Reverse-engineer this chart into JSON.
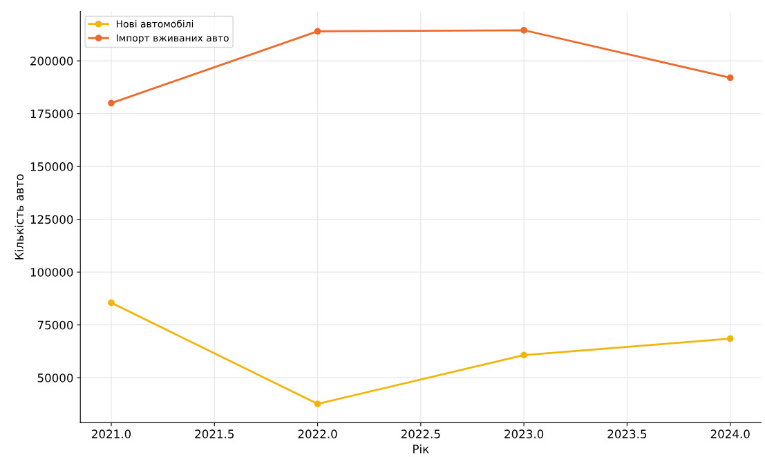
{
  "chart_data": {
    "type": "line",
    "xlabel": "Рік",
    "ylabel": "Кількість авто",
    "x": [
      2021,
      2022,
      2023,
      2024
    ],
    "series": [
      {
        "name": "Нові автомобілі",
        "color": "#f2b50c",
        "values": [
          85500,
          37600,
          60700,
          68500
        ]
      },
      {
        "name": "Імпорт вживаних авто",
        "color": "#ec6a2c",
        "values": [
          180000,
          214000,
          214500,
          192000
        ]
      }
    ],
    "xlim": [
      2020.85,
      2024.15
    ],
    "ylim": [
      28700,
      223400
    ],
    "xticks": [
      {
        "value": 2021,
        "label": "2021.0"
      },
      {
        "value": 2021.5,
        "label": "2021.5"
      },
      {
        "value": 2022,
        "label": "2022.0"
      },
      {
        "value": 2022.5,
        "label": "2022.5"
      },
      {
        "value": 2023,
        "label": "2023.0"
      },
      {
        "value": 2023.5,
        "label": "2023.5"
      },
      {
        "value": 2024,
        "label": "2024.0"
      }
    ],
    "yticks": [
      50000,
      75000,
      100000,
      125000,
      150000,
      175000,
      200000
    ],
    "grid": true,
    "legend": "top left",
    "marker": "circle",
    "line_style": "solid"
  }
}
